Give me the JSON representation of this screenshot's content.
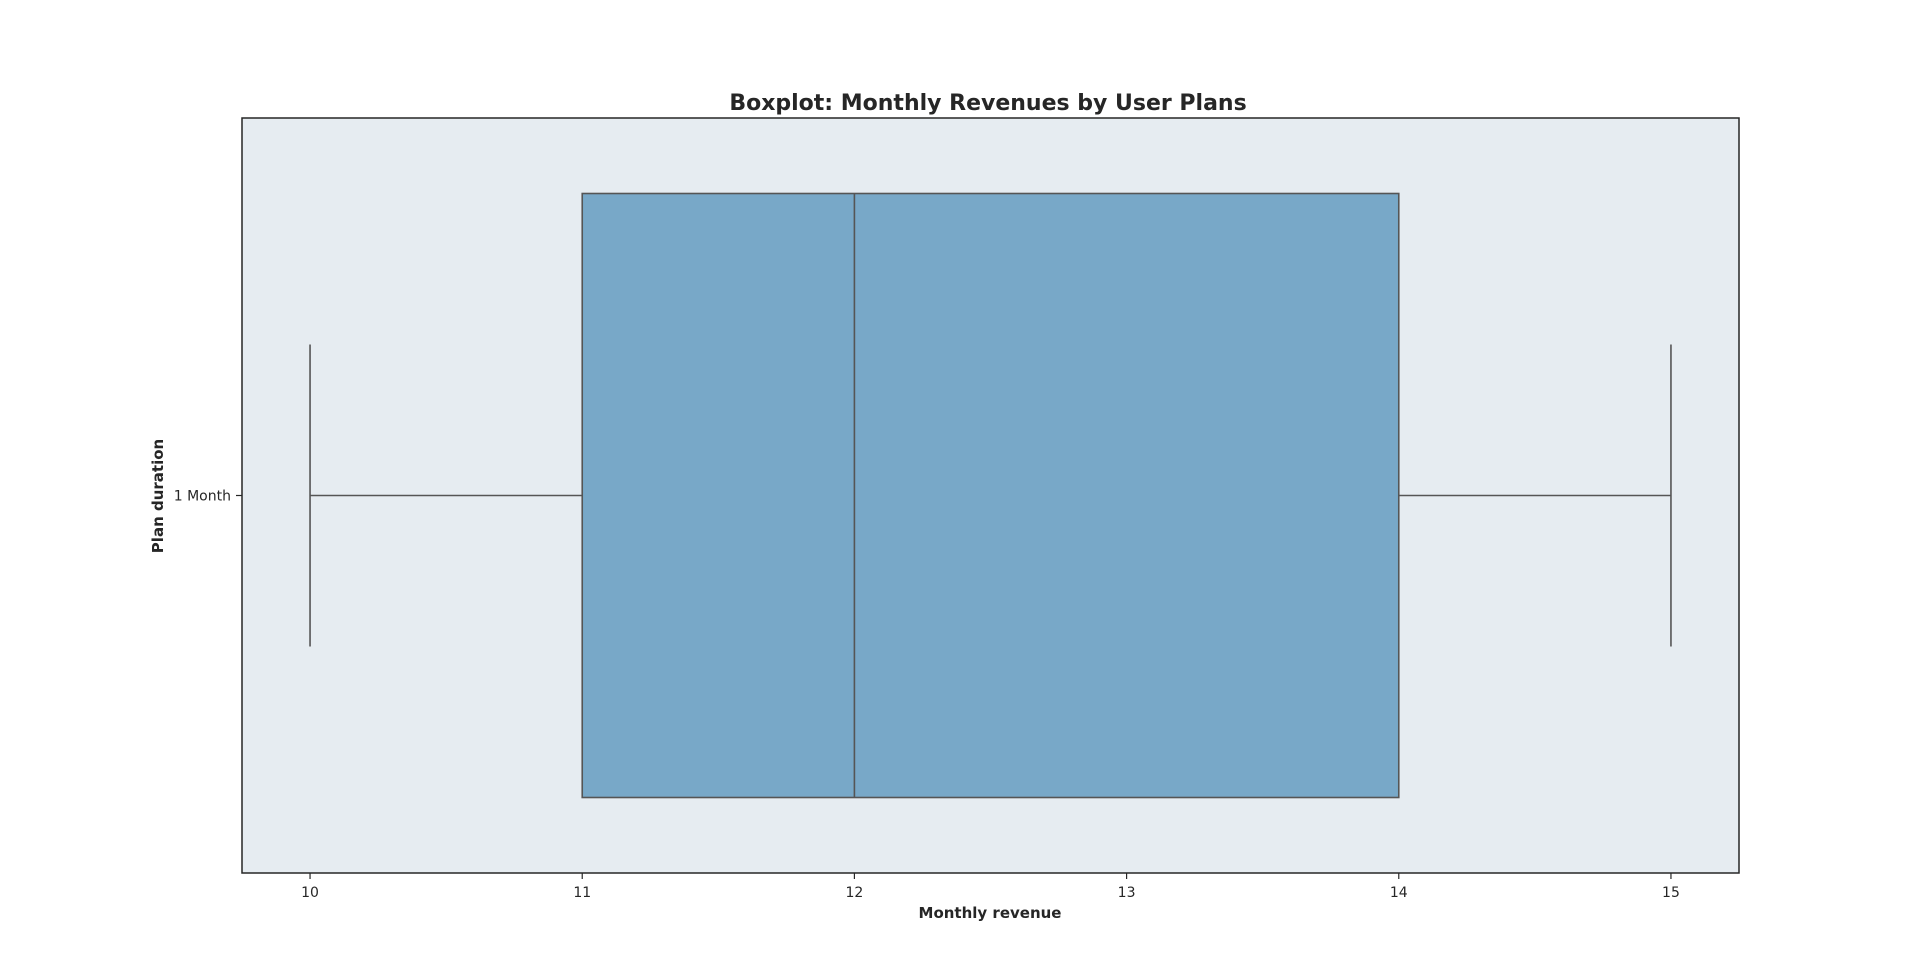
{
  "chart_data": {
    "type": "boxplot",
    "title": "Boxplot: Monthly Revenues by User Plans",
    "xlabel": "Monthly revenue",
    "ylabel": "Plan duration",
    "orientation": "horizontal",
    "xlim": [
      9.75,
      15.25
    ],
    "xticks": [
      10,
      11,
      12,
      13,
      14,
      15
    ],
    "categories": [
      "1 Month"
    ],
    "boxes": [
      {
        "category": "1 Month",
        "whisker_low": 10,
        "q1": 11,
        "median": 12,
        "q3": 14,
        "whisker_high": 15
      }
    ],
    "grid": false,
    "legend": "none",
    "colors": {
      "box_fill": "#78a8c8",
      "plot_background": "#e6ecf1",
      "lines": "#555555",
      "frame": "#262626"
    }
  }
}
